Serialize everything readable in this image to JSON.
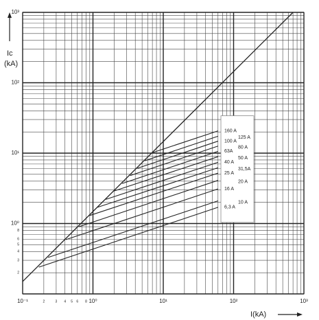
{
  "chart_data": {
    "type": "line",
    "ylabel": [
      "Ic",
      "(kA)"
    ],
    "xlabel": "I(kA)",
    "log_x": true,
    "log_y": true,
    "grid": true,
    "xlim": [
      0.1,
      1000
    ],
    "ylim": [
      0.1,
      1000
    ],
    "xticks": [
      {
        "value": 0.1,
        "label": "10⁻¹"
      },
      {
        "value": 0.2,
        "label": "2"
      },
      {
        "value": 0.3,
        "label": "3"
      },
      {
        "value": 0.4,
        "label": "4"
      },
      {
        "value": 0.5,
        "label": "5"
      },
      {
        "value": 0.6,
        "label": "6"
      },
      {
        "value": 0.8,
        "label": "8"
      },
      {
        "value": 1,
        "label": "10⁰"
      },
      {
        "value": 10,
        "label": "10¹"
      },
      {
        "value": 100,
        "label": "10²"
      },
      {
        "value": 1000,
        "label": "10³"
      }
    ],
    "yticks": [
      {
        "value": 0.2,
        "label": "2"
      },
      {
        "value": 0.3,
        "label": "3"
      },
      {
        "value": 0.4,
        "label": "4"
      },
      {
        "value": 0.5,
        "label": "5"
      },
      {
        "value": 0.6,
        "label": "6"
      },
      {
        "value": 0.8,
        "label": "8"
      },
      {
        "value": 1,
        "label": "10⁰"
      },
      {
        "value": 10,
        "label": "10¹"
      },
      {
        "value": 100,
        "label": "10²"
      },
      {
        "value": 1000,
        "label": "10³"
      }
    ],
    "major_grid": [
      0.1,
      1,
      10,
      100,
      1000
    ],
    "minor_grid": [
      0.2,
      0.3,
      0.4,
      0.5,
      0.6,
      0.7,
      0.8,
      0.9,
      2,
      3,
      4,
      5,
      6,
      7,
      8,
      9,
      20,
      30,
      40,
      50,
      60,
      70,
      80,
      90,
      200,
      300,
      400,
      500,
      600,
      700,
      800,
      900
    ],
    "color": "#222222",
    "reference_line": {
      "x": [
        0.1,
        700
      ],
      "y": [
        0.15,
        1000
      ]
    },
    "series": [
      {
        "name": "160 A",
        "x": [
          7.1,
          60
        ],
        "y": [
          10.2,
          20.7
        ]
      },
      {
        "name": "125 A",
        "x": [
          5.48,
          60
        ],
        "y": [
          7.8,
          17.4
        ]
      },
      {
        "name": "100 A",
        "x": [
          4.3,
          60
        ],
        "y": [
          6.1,
          14.8
        ]
      },
      {
        "name": "80 A",
        "x": [
          3.38,
          60
        ],
        "y": [
          4.8,
          12.6
        ]
      },
      {
        "name": "63A",
        "x": [
          2.6,
          60
        ],
        "y": [
          3.7,
          10.6
        ]
      },
      {
        "name": "50 A",
        "x": [
          2.0,
          60
        ],
        "y": [
          2.9,
          8.9
        ]
      },
      {
        "name": "40 A",
        "x": [
          1.52,
          60
        ],
        "y": [
          2.2,
          7.4
        ]
      },
      {
        "name": "31,5A",
        "x": [
          1.16,
          60
        ],
        "y": [
          1.7,
          6.2
        ]
      },
      {
        "name": "25 A",
        "x": [
          0.9,
          60
        ],
        "y": [
          1.3,
          5.2
        ]
      },
      {
        "name": "20 A",
        "x": [
          0.63,
          60
        ],
        "y": [
          0.9,
          4.1
        ]
      },
      {
        "name": "16 A",
        "x": [
          0.41,
          60
        ],
        "y": [
          0.59,
          3.1
        ]
      },
      {
        "name": "10 A",
        "x": [
          0.23,
          60
        ],
        "y": [
          0.33,
          2.1
        ]
      },
      {
        "name": "6,3 A",
        "x": [
          0.17,
          60
        ],
        "y": [
          0.24,
          1.7
        ]
      }
    ]
  }
}
